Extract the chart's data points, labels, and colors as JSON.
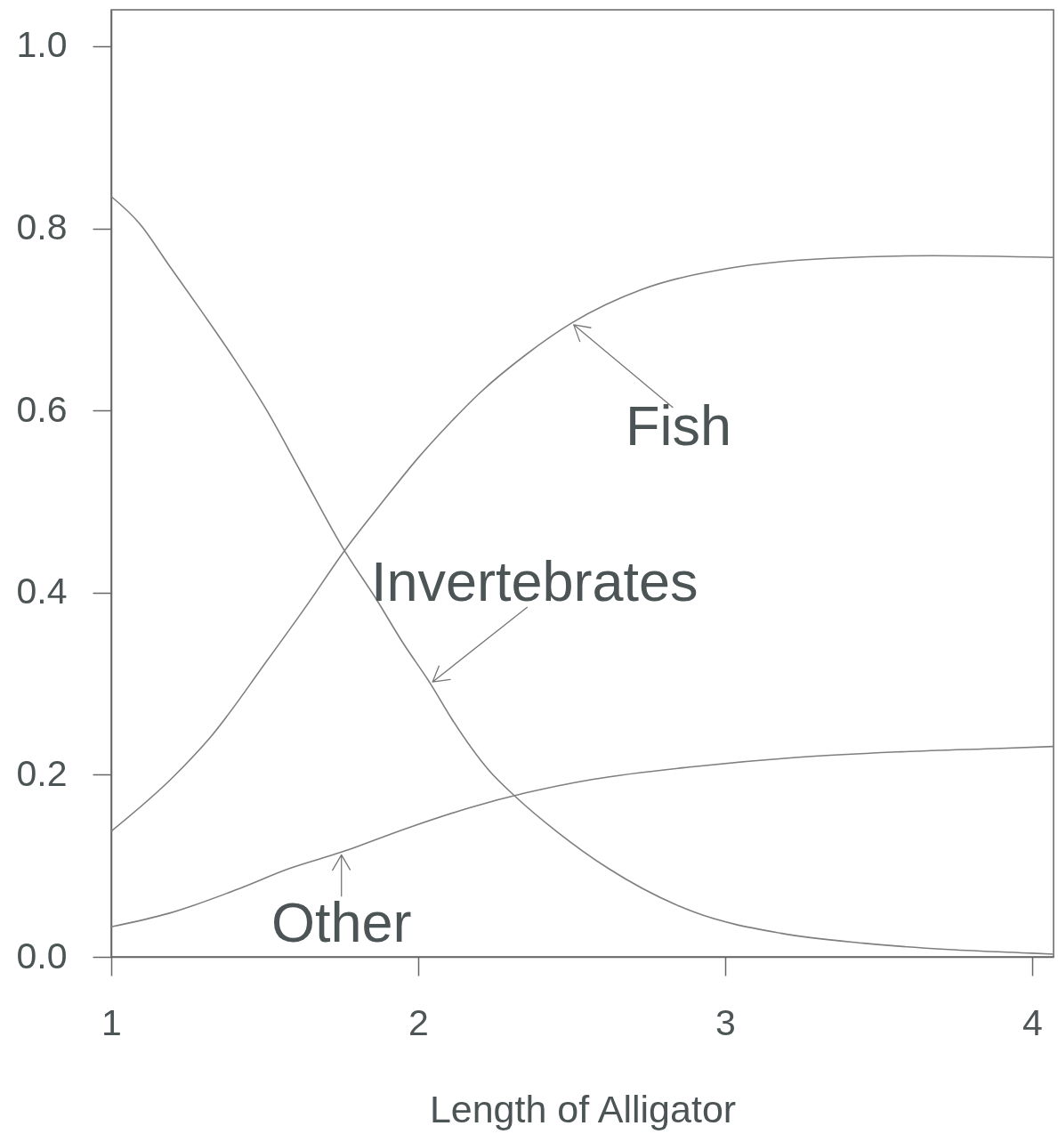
{
  "chart_data": {
    "type": "line",
    "xlabel": "Length of Alligator",
    "xlim": [
      1,
      4.07
    ],
    "ylim": [
      0,
      1.04
    ],
    "xticks": [
      1,
      2,
      3,
      4
    ],
    "yticks": [
      {
        "value": 0,
        "label": "0.0"
      },
      0.2,
      0.4,
      0.6,
      0.8,
      {
        "value": 1,
        "label": "1.0"
      }
    ],
    "line_style": "solid",
    "series": [
      {
        "color": "#7f7f7f",
        "x": [
          1.0,
          1.093,
          1.185,
          1.294,
          1.4,
          1.507,
          1.62,
          1.76,
          1.865,
          1.95,
          2.04,
          2.11,
          2.23,
          2.32,
          2.45,
          2.62,
          2.9,
          3.18,
          3.45,
          3.73,
          4.0,
          4.07
        ],
        "values": [
          0.835,
          0.805,
          0.761,
          0.709,
          0.657,
          0.6,
          0.531,
          0.446,
          0.392,
          0.345,
          0.3,
          0.261,
          0.205,
          0.175,
          0.138,
          0.097,
          0.049,
          0.026,
          0.015,
          0.008,
          0.004,
          0.003
        ]
      },
      {
        "color": "#7f7f7f",
        "x": [
          1.0,
          1.2,
          1.325,
          1.507,
          1.635,
          1.76,
          1.88,
          2.0,
          2.1,
          2.2,
          2.35,
          2.5,
          2.73,
          3.01,
          3.34,
          3.68,
          4.07
        ],
        "values": [
          0.138,
          0.197,
          0.242,
          0.325,
          0.385,
          0.446,
          0.498,
          0.548,
          0.585,
          0.619,
          0.661,
          0.696,
          0.733,
          0.756,
          0.767,
          0.77,
          0.768
        ]
      },
      {
        "color": "#7f7f7f",
        "x": [
          1.0,
          1.19,
          1.41,
          1.58,
          1.75,
          1.97,
          2.17,
          2.35,
          2.57,
          2.9,
          3.23,
          3.56,
          3.9,
          4.07
        ],
        "values": [
          0.033,
          0.048,
          0.074,
          0.097,
          0.115,
          0.142,
          0.164,
          0.18,
          0.195,
          0.209,
          0.219,
          0.225,
          0.229,
          0.231
        ]
      }
    ],
    "annotations": [
      {
        "text": "Fish",
        "x": 2.5,
        "y": 0.696
      },
      {
        "text": "Invertebrates",
        "x": 2.04,
        "y": 0.3
      },
      {
        "text": "Other",
        "x": 1.75,
        "y": 0.115
      }
    ]
  }
}
